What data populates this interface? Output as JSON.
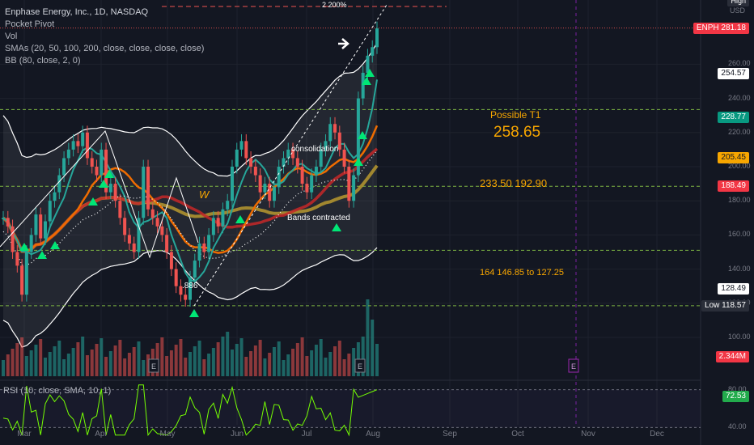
{
  "legend": {
    "title": "Enphase Energy, Inc., 1D, NASDAQ",
    "line2": "Pocket Pivot",
    "line3": "Vol",
    "line4": "SMAs (20, 50, 100, 200, close, close, close, close)",
    "line5": "BB (80, close, 2, 0)"
  },
  "rsi_label": "RSI (10, close, SMA, 10, 1)",
  "currency": "USD",
  "high_label": "High",
  "price_boxes": [
    {
      "label": "ENPH",
      "value": "281.18",
      "price": 281.18,
      "bg": "#f23645",
      "fg": "#ffffff"
    },
    {
      "label": "",
      "value": "254.57",
      "price": 254.57,
      "bg": "#ffffff",
      "fg": "#131722"
    },
    {
      "label": "",
      "value": "228.77",
      "price": 228.77,
      "bg": "#089981",
      "fg": "#ffffff"
    },
    {
      "label": "",
      "value": "205.45",
      "price": 205.45,
      "bg": "#f7a600",
      "fg": "#131722"
    },
    {
      "label": "",
      "value": "188.49",
      "price": 188.49,
      "bg": "#f23645",
      "fg": "#ffffff"
    },
    {
      "label": "",
      "value": "128.49",
      "price": 128.49,
      "bg": "#ffffff",
      "fg": "#131722"
    },
    {
      "label": "Low",
      "value": "118.57",
      "price": 118.57,
      "bg": "#2a2e39",
      "fg": "#ffffff"
    },
    {
      "label": "",
      "value": "2.344M",
      "price": null,
      "bg": "#f23645",
      "fg": "#ffffff"
    },
    {
      "label": "",
      "value": "72.53",
      "price": null,
      "bg": "#22ab4c",
      "fg": "#ffffff"
    }
  ],
  "annotations": {
    "t1_label": "Possible T1",
    "t1_value": "258.65",
    "levels_mid": "233.50   192.90",
    "levels_low": "164   146.85 to 127.25",
    "consolidation": "consolidation",
    "bands": "Bands contracted",
    "fib": ".886",
    "pct": "2 200%",
    "w": "W"
  },
  "colors": {
    "bg": "#131722",
    "up": "#26a69a",
    "down": "#ef5350",
    "sma20": "#26a69a",
    "sma50": "#ef6c00",
    "sma100": "#c62828",
    "sma200": "#c0a030",
    "band": "#ffffff",
    "accent": "#f7a600",
    "guide": "#7cb342"
  },
  "chart_data": {
    "type": "candlestick",
    "title": "Enphase Energy, Inc., 1D, NASDAQ",
    "ylim": [
      70,
      300
    ],
    "y_ticks": [
      100,
      120,
      140,
      160,
      180,
      200,
      220,
      240,
      260
    ],
    "x_ticks": [
      "Mar",
      "Apr",
      "May",
      "Jun",
      "Jul",
      "Aug",
      "Sep",
      "Oct",
      "Nov",
      "Dec"
    ],
    "last_price": 281.18,
    "levels": {
      "target_t1": 258.65,
      "upper_band": 254.57,
      "sma20": 228.77,
      "sma50": 205.45,
      "sma100": 188.49,
      "lower_band": 128.49,
      "low": 118.57,
      "guide_lines": [
        233.5,
        188.49,
        151,
        118.57
      ]
    },
    "path_points": [
      170,
      165,
      150,
      142,
      125,
      150,
      160,
      172,
      158,
      168,
      180,
      185,
      195,
      205,
      210,
      215,
      212,
      220,
      205,
      200,
      195,
      210,
      185,
      190,
      180,
      170,
      160,
      155,
      150,
      170,
      200,
      175,
      170,
      165,
      160,
      150,
      140,
      130,
      125,
      122,
      135,
      145,
      155,
      150,
      160,
      170,
      165,
      175,
      180,
      200,
      210,
      215,
      205,
      200,
      195,
      185,
      190,
      180,
      188,
      200,
      205,
      210,
      205,
      200,
      190,
      185,
      195,
      200,
      210,
      215,
      225,
      220,
      210,
      200,
      180,
      195,
      240,
      255,
      265,
      270,
      281
    ],
    "volume_last": "2.344M",
    "rsi": {
      "period": 10,
      "last": 72.53,
      "ylim": [
        30,
        90
      ],
      "ticks": [
        40,
        80
      ]
    }
  }
}
